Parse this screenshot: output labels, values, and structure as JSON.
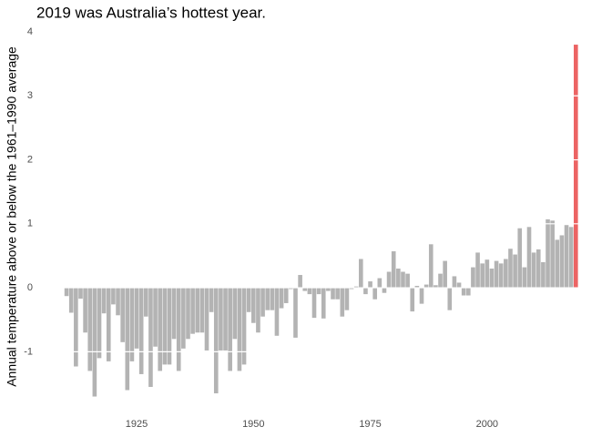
{
  "chart_data": {
    "type": "bar",
    "title": "2019 was Australia’s hottest year.",
    "y_label": "Annual temperature above or below the 1961–1990 average",
    "x": [
      1910,
      1911,
      1912,
      1913,
      1914,
      1915,
      1916,
      1917,
      1918,
      1919,
      1920,
      1921,
      1922,
      1923,
      1924,
      1925,
      1926,
      1927,
      1928,
      1929,
      1930,
      1931,
      1932,
      1933,
      1934,
      1935,
      1936,
      1937,
      1938,
      1939,
      1940,
      1941,
      1942,
      1943,
      1944,
      1945,
      1946,
      1947,
      1948,
      1949,
      1950,
      1951,
      1952,
      1953,
      1954,
      1955,
      1956,
      1957,
      1958,
      1959,
      1960,
      1961,
      1962,
      1963,
      1964,
      1965,
      1966,
      1967,
      1968,
      1969,
      1970,
      1971,
      1972,
      1973,
      1974,
      1975,
      1976,
      1977,
      1978,
      1979,
      1980,
      1981,
      1982,
      1983,
      1984,
      1985,
      1986,
      1987,
      1988,
      1989,
      1990,
      1991,
      1992,
      1993,
      1994,
      1995,
      1996,
      1997,
      1998,
      1999,
      2000,
      2001,
      2002,
      2003,
      2004,
      2005,
      2006,
      2007,
      2008,
      2009,
      2010,
      2011,
      2012,
      2013,
      2014,
      2015,
      2016,
      2017,
      2018,
      2019
    ],
    "values": [
      -0.13,
      -0.39,
      -1.23,
      -0.17,
      -0.7,
      -1.3,
      -1.7,
      -1.1,
      -0.4,
      -1.15,
      -0.26,
      -0.43,
      -0.85,
      -1.6,
      -1.15,
      -0.95,
      -1.35,
      -0.45,
      -1.55,
      -0.92,
      -1.3,
      -1.2,
      -1.2,
      -0.8,
      -1.3,
      -0.95,
      -0.8,
      -0.72,
      -0.7,
      -0.7,
      -0.98,
      -0.38,
      -1.65,
      -0.98,
      -0.98,
      -1.3,
      -0.8,
      -1.3,
      -1.2,
      -0.38,
      -0.55,
      -0.7,
      -0.45,
      -0.35,
      -0.35,
      -0.75,
      -0.32,
      -0.24,
      -0.02,
      -0.78,
      0.2,
      -0.05,
      -0.1,
      -0.47,
      -0.1,
      -0.48,
      -0.05,
      -0.18,
      -0.18,
      -0.45,
      -0.35,
      -0.02,
      0.02,
      0.45,
      -0.1,
      0.1,
      -0.18,
      0.15,
      -0.08,
      0.25,
      0.57,
      0.3,
      0.25,
      0.22,
      -0.37,
      0.03,
      -0.25,
      0.05,
      0.68,
      0.04,
      0.22,
      0.42,
      -0.35,
      0.18,
      0.08,
      -0.12,
      -0.12,
      0.32,
      0.55,
      0.38,
      0.44,
      0.3,
      0.42,
      0.38,
      0.45,
      0.61,
      0.52,
      0.93,
      0.32,
      0.95,
      0.55,
      0.6,
      0.4,
      1.07,
      1.05,
      0.75,
      0.82,
      0.98,
      0.95,
      3.8
    ],
    "color": "#b3b3b3",
    "highlight": {
      "x": 2019,
      "color": "#ec6464"
    },
    "xlim": [
      1908.5,
      2020.5
    ],
    "xticks": [
      1925,
      1950,
      1975,
      2000
    ],
    "ylim": [
      -1.9,
      4
    ],
    "yticks": [
      -1,
      0,
      1,
      2,
      3,
      4
    ],
    "grid": true,
    "grid_color": "#ffffff"
  }
}
